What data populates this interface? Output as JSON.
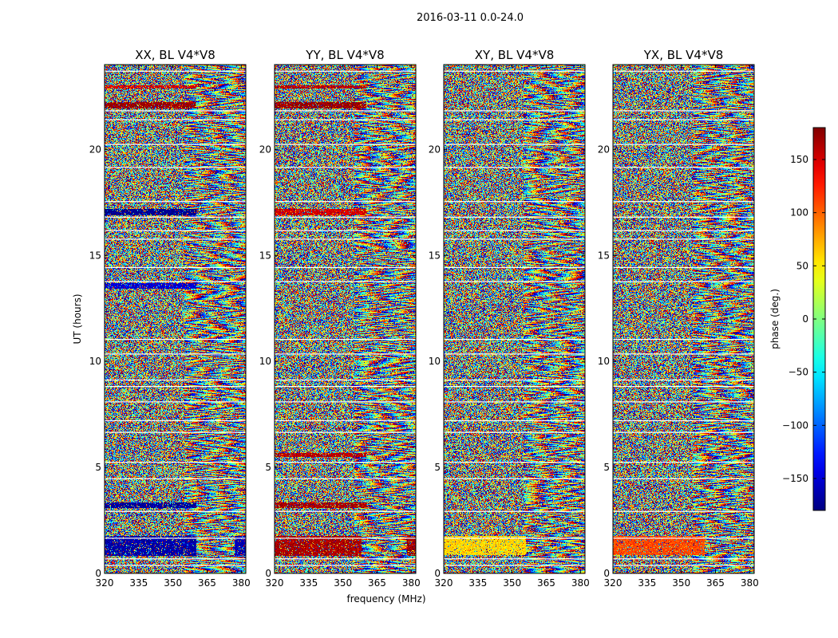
{
  "figure": {
    "suptitle": "2016-03-11 0.0-24.0"
  },
  "chart_data": {
    "type": "heatmap",
    "title": "2016-03-11 0.0-24.0",
    "xlabel": "frequency (MHz)",
    "ylabel": "UT (hours)",
    "xlim": [
      320,
      382
    ],
    "ylim": [
      0,
      24
    ],
    "xticks": [
      320,
      335,
      350,
      365,
      380
    ],
    "yticks": [
      0,
      5,
      10,
      15,
      20
    ],
    "panels": [
      {
        "title": "XX, BL V4*V8",
        "polarization": "XX",
        "features": [
          {
            "t0": 0.85,
            "t1": 1.8,
            "f0": 320,
            "f1": 360,
            "phase": -165
          },
          {
            "t0": 0.85,
            "t1": 1.8,
            "f0": 377,
            "f1": 382,
            "phase": -160
          },
          {
            "t0": 3.1,
            "t1": 3.35,
            "f0": 320,
            "f1": 360,
            "phase": -170
          },
          {
            "t0": 13.45,
            "t1": 13.7,
            "f0": 320,
            "f1": 360,
            "phase": -150
          },
          {
            "t0": 16.9,
            "t1": 17.2,
            "f0": 320,
            "f1": 360,
            "phase": -175
          },
          {
            "t0": 21.95,
            "t1": 22.25,
            "f0": 320,
            "f1": 360,
            "phase": 170
          },
          {
            "t0": 22.9,
            "t1": 23.05,
            "f0": 320,
            "f1": 360,
            "phase": 150
          }
        ]
      },
      {
        "title": "YY, BL V4*V8",
        "polarization": "YY",
        "features": [
          {
            "t0": 0.85,
            "t1": 1.8,
            "f0": 320,
            "f1": 358,
            "phase": 165
          },
          {
            "t0": 0.85,
            "t1": 1.8,
            "f0": 378,
            "f1": 382,
            "phase": 170
          },
          {
            "t0": 3.1,
            "t1": 3.35,
            "f0": 320,
            "f1": 360,
            "phase": 165
          },
          {
            "t0": 5.5,
            "t1": 5.7,
            "f0": 320,
            "f1": 360,
            "phase": 160
          },
          {
            "t0": 16.9,
            "t1": 17.2,
            "f0": 320,
            "f1": 360,
            "phase": 150
          },
          {
            "t0": 21.95,
            "t1": 22.25,
            "f0": 320,
            "f1": 360,
            "phase": 170
          },
          {
            "t0": 22.9,
            "t1": 23.05,
            "f0": 320,
            "f1": 360,
            "phase": 160
          }
        ]
      },
      {
        "title": "XY, BL V4*V8",
        "polarization": "XY",
        "features": [
          {
            "t0": 0.9,
            "t1": 1.8,
            "f0": 320,
            "f1": 356,
            "phase": 60
          }
        ]
      },
      {
        "title": "YX, BL V4*V8",
        "polarization": "YX",
        "features": [
          {
            "t0": 0.9,
            "t1": 1.8,
            "f0": 320,
            "f1": 360,
            "phase": 110
          }
        ]
      }
    ],
    "colorbar": {
      "label": "phase (deg.)",
      "vmin": -180,
      "vmax": 180,
      "ticks": [
        -150,
        -100,
        -50,
        0,
        50,
        100,
        150
      ],
      "colormap": "jet"
    }
  }
}
